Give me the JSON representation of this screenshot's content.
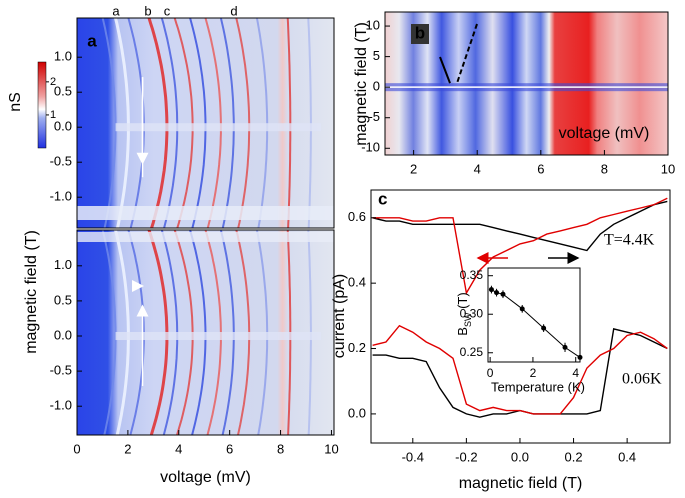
{
  "chart_data": [
    {
      "type": "heatmap",
      "panel_label": "a",
      "xlim": [
        0,
        10.1
      ],
      "ylim": [
        -1.44,
        1.56
      ],
      "yticks": [
        {
          "value": 1,
          "label": "1.0"
        },
        {
          "value": 0.5,
          "label": "0.5"
        },
        {
          "value": 0,
          "label": "0.0"
        },
        {
          "value": -0.5,
          "label": "-0.5"
        },
        {
          "value": -1,
          "label": "-1.0"
        }
      ],
      "markers": [
        "a",
        "b",
        "c",
        "d"
      ],
      "colorbar": {
        "label": "nS",
        "lim": [
          0,
          2.6
        ],
        "ticks": [
          1,
          2
        ]
      }
    },
    {
      "type": "heatmap",
      "xlim": [
        0,
        10.1
      ],
      "ylim": [
        -1.41,
        1.51
      ],
      "xticks": [
        0,
        2,
        4,
        6,
        8,
        10
      ],
      "yticks": [
        {
          "value": 1,
          "label": "1.0"
        },
        {
          "value": 0.5,
          "label": "0.5"
        },
        {
          "value": 0,
          "label": "0.0"
        },
        {
          "value": -0.5,
          "label": "-0.5"
        },
        {
          "value": -1,
          "label": "-1.0"
        }
      ],
      "xlabel": "voltage (mV)",
      "ylabel": "magnetic field (T)"
    },
    {
      "type": "heatmap",
      "panel_label": "b",
      "xlim": [
        1.1,
        10
      ],
      "ylim": [
        -11.1,
        12.3
      ],
      "xticks": [
        2,
        4,
        6,
        8,
        10
      ],
      "yticks": [
        10,
        5,
        0,
        -5,
        -10
      ],
      "xlabel": "voltage (mV)",
      "ylabel": "magnetic field (T)"
    },
    {
      "type": "line",
      "panel_label": "c",
      "xlim": [
        -0.556,
        0.56
      ],
      "ylim": [
        -0.089,
        0.685
      ],
      "xticks": [
        -0.4,
        -0.2,
        {
          "value": 0,
          "label": "0.0"
        },
        0.2,
        0.4
      ],
      "yticks": [
        {
          "value": 0,
          "label": "0.0"
        },
        0.2,
        0.4,
        0.6
      ],
      "xlabel": "magnetic field (T)",
      "ylabel": "current (pA)",
      "annotations": [
        "T=4.4K",
        "0.06K"
      ],
      "x": [
        -0.55,
        -0.5,
        -0.45,
        -0.4,
        -0.35,
        -0.3,
        -0.25,
        -0.2,
        -0.15,
        -0.1,
        -0.05,
        0,
        0.05,
        0.1,
        0.15,
        0.2,
        0.25,
        0.3,
        0.35,
        0.4,
        0.45,
        0.5,
        0.55
      ],
      "series": [
        {
          "color": "#000000",
          "values": [
            0.6,
            0.59,
            0.59,
            0.58,
            0.58,
            0.58,
            0.58,
            0.58,
            0.58,
            0.57,
            0.56,
            0.55,
            0.54,
            0.53,
            0.52,
            0.51,
            0.5,
            0.55,
            0.58,
            0.6,
            0.62,
            0.64,
            0.65
          ]
        },
        {
          "color": "#e00000",
          "values": [
            0.6,
            0.6,
            0.6,
            0.59,
            0.59,
            0.6,
            0.6,
            0.37,
            0.44,
            0.48,
            0.5,
            0.52,
            0.53,
            0.55,
            0.56,
            0.57,
            0.58,
            0.6,
            0.61,
            0.62,
            0.63,
            0.64,
            0.66
          ]
        },
        {
          "color": "#000000",
          "values": [
            0.18,
            0.18,
            0.17,
            0.17,
            0.16,
            0.08,
            0.02,
            0,
            -0.01,
            0,
            0,
            0.01,
            0,
            0,
            0,
            0,
            0,
            0.01,
            0.26,
            0.25,
            0.24,
            0.22,
            0.2
          ]
        },
        {
          "color": "#e00000",
          "values": [
            0.21,
            0.22,
            0.27,
            0.25,
            0.22,
            0.2,
            0.17,
            0.03,
            0.01,
            0.02,
            0.01,
            0.01,
            0,
            0,
            0,
            0.05,
            0.14,
            0.18,
            0.2,
            0.24,
            0.25,
            0.23,
            0.2
          ]
        }
      ]
    },
    {
      "type": "scatter",
      "xlim": [
        -0.1,
        4.2
      ],
      "ylim": [
        0.238,
        0.36
      ],
      "xticks": [
        0,
        2,
        4
      ],
      "yticks": [
        0.25,
        {
          "value": 0.3,
          "label": "0.30"
        },
        0.35
      ],
      "xlabel": "Temperature (K)",
      "ylabel": "B",
      "ylabel_sub": "SW",
      "ylabel_unit": " (T)",
      "color": "#000000",
      "x": [
        0.06,
        0.3,
        0.6,
        1.5,
        2.5,
        3.5,
        4.2
      ],
      "values": [
        0.332,
        0.328,
        0.326,
        0.307,
        0.282,
        0.257,
        0.244
      ],
      "errors": [
        0.005,
        0.005,
        0.005,
        0.005,
        0.005,
        0.006,
        0.006
      ]
    }
  ]
}
